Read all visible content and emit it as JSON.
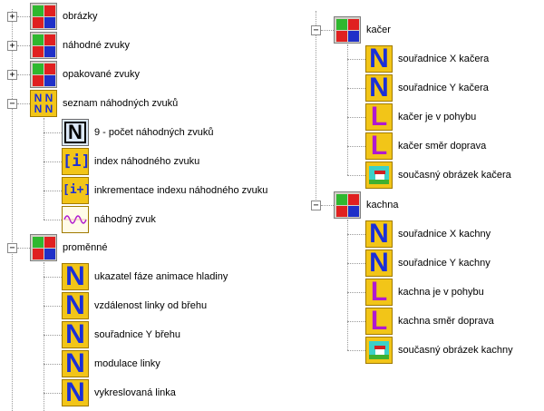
{
  "tree_left": {
    "obrazky": "obrázky",
    "nahodne_zvuky": "náhodné zvuky",
    "opakovane_zvuky": "opakované zvuky",
    "seznam": {
      "label": "seznam náhodných zvuků",
      "items": [
        "9 - počet náhodných zvuků",
        "index náhodného zvuku",
        "inkrementace indexu náhodného zvuku",
        "náhodný zvuk"
      ]
    },
    "promenne": {
      "label": "proměnné",
      "items": [
        "ukazatel fáze animace hladiny",
        "vzdálenost linky od břehu",
        "souřadnice Y břehu",
        "modulace linky",
        "vykreslovaná linka"
      ]
    }
  },
  "tree_right": {
    "kacer": {
      "label": "kačer",
      "items": [
        "souřadnice X kačera",
        "souřadnice Y kačera",
        "kačer je v pohybu",
        "kačer směr doprava",
        "současný obrázek kačera"
      ]
    },
    "kachna": {
      "label": "kachna",
      "items": [
        "souřadnice X kachny",
        "souřadnice Y kachny",
        "kachna je v pohybu",
        "kachna směr doprava",
        "současný obrázek kachny"
      ]
    }
  },
  "glyphs": {
    "plus": "+",
    "minus": "−",
    "n": "N",
    "l": "L",
    "idx": "[i]",
    "inc": "[i+]"
  }
}
